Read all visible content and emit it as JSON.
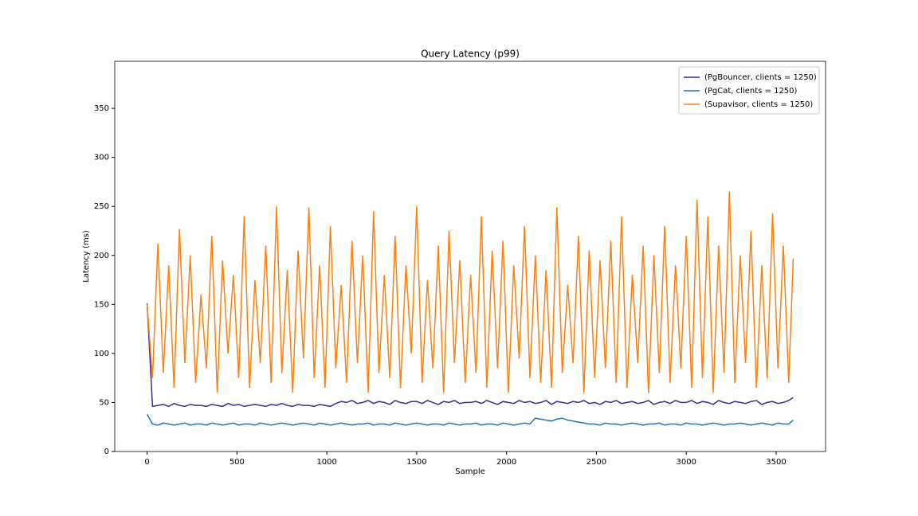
{
  "chart_data": {
    "type": "line",
    "title": "Query Latency (p99)",
    "x_label": "Sample",
    "y_label": "Latency (ms)",
    "x": [
      0,
      30,
      60,
      90,
      120,
      150,
      180,
      210,
      240,
      270,
      300,
      330,
      360,
      390,
      420,
      450,
      480,
      510,
      540,
      570,
      600,
      630,
      660,
      690,
      720,
      750,
      780,
      810,
      840,
      870,
      900,
      930,
      960,
      990,
      1020,
      1050,
      1080,
      1110,
      1140,
      1170,
      1200,
      1230,
      1260,
      1290,
      1320,
      1350,
      1380,
      1410,
      1440,
      1470,
      1500,
      1530,
      1560,
      1590,
      1620,
      1650,
      1680,
      1710,
      1740,
      1770,
      1800,
      1830,
      1860,
      1890,
      1920,
      1950,
      1980,
      2010,
      2040,
      2070,
      2100,
      2130,
      2160,
      2190,
      2220,
      2250,
      2280,
      2310,
      2340,
      2370,
      2400,
      2430,
      2460,
      2490,
      2520,
      2550,
      2580,
      2610,
      2640,
      2670,
      2700,
      2730,
      2760,
      2790,
      2820,
      2850,
      2880,
      2910,
      2940,
      2970,
      3000,
      3030,
      3060,
      3090,
      3120,
      3150,
      3180,
      3210,
      3240,
      3270,
      3300,
      3330,
      3360,
      3390,
      3420,
      3450,
      3480,
      3510,
      3540,
      3570,
      3595
    ],
    "series": [
      {
        "name": "(PgBouncer, clients = 1250)",
        "color": "#3b2c96",
        "values": [
          151,
          46,
          47,
          48,
          46,
          49,
          47,
          46,
          48,
          47,
          47,
          46,
          48,
          47,
          46,
          49,
          47,
          48,
          46,
          47,
          48,
          47,
          46,
          48,
          47,
          49,
          47,
          46,
          48,
          47,
          47,
          46,
          48,
          47,
          46,
          49,
          51,
          50,
          52,
          49,
          50,
          52,
          49,
          51,
          50,
          48,
          52,
          50,
          49,
          51,
          51,
          49,
          52,
          50,
          48,
          51,
          50,
          52,
          49,
          50,
          50,
          51,
          49,
          52,
          50,
          48,
          51,
          50,
          49,
          52,
          50,
          51,
          49,
          50,
          52,
          48,
          51,
          50,
          49,
          51,
          50,
          52,
          49,
          50,
          48,
          51,
          50,
          52,
          49,
          50,
          51,
          49,
          50,
          52,
          48,
          50,
          51,
          49,
          52,
          50,
          50,
          52,
          49,
          51,
          50,
          48,
          52,
          50,
          49,
          51,
          50,
          49,
          51,
          52,
          48,
          50,
          51,
          49,
          50,
          52,
          55
        ]
      },
      {
        "name": "(PgCat, clients = 1250)",
        "color": "#1f77b4",
        "values": [
          38,
          28,
          27,
          29,
          28,
          27,
          28,
          29,
          27,
          28,
          28,
          27,
          29,
          28,
          27,
          28,
          29,
          27,
          28,
          28,
          27,
          29,
          28,
          27,
          28,
          29,
          28,
          27,
          28,
          29,
          28,
          27,
          29,
          28,
          27,
          28,
          29,
          28,
          27,
          28,
          28,
          29,
          27,
          28,
          28,
          27,
          29,
          28,
          27,
          28,
          29,
          28,
          27,
          28,
          28,
          27,
          29,
          28,
          27,
          28,
          28,
          29,
          27,
          28,
          28,
          27,
          29,
          28,
          27,
          28,
          29,
          28,
          34,
          33,
          32,
          31,
          33,
          34,
          32,
          31,
          30,
          29,
          28,
          28,
          27,
          29,
          28,
          28,
          27,
          28,
          29,
          28,
          27,
          28,
          28,
          29,
          27,
          28,
          28,
          27,
          29,
          28,
          28,
          27,
          28,
          29,
          28,
          27,
          28,
          28,
          29,
          28,
          27,
          28,
          29,
          28,
          27,
          29,
          28,
          28,
          32
        ]
      },
      {
        "name": "(Supavisor, clients = 1250)",
        "color": "#ff7f0e",
        "values": [
          150,
          75,
          212,
          80,
          190,
          65,
          227,
          90,
          200,
          70,
          160,
          85,
          220,
          60,
          195,
          100,
          180,
          75,
          240,
          65,
          175,
          90,
          210,
          70,
          250,
          80,
          185,
          60,
          205,
          95,
          249,
          75,
          190,
          65,
          230,
          85,
          170,
          70,
          215,
          90,
          200,
          60,
          245,
          80,
          180,
          75,
          220,
          65,
          190,
          100,
          250,
          70,
          175,
          85,
          210,
          60,
          225,
          90,
          195,
          70,
          180,
          80,
          240,
          65,
          205,
          85,
          215,
          60,
          190,
          95,
          230,
          75,
          200,
          70,
          185,
          65,
          249,
          80,
          170,
          90,
          220,
          60,
          205,
          75,
          195,
          85,
          215,
          70,
          240,
          65,
          180,
          90,
          210,
          60,
          200,
          80,
          230,
          70,
          190,
          85,
          220,
          65,
          257,
          75,
          240,
          60,
          210,
          80,
          265,
          70,
          200,
          90,
          225,
          65,
          190,
          75,
          243,
          85,
          210,
          70,
          197
        ]
      }
    ],
    "xlim": [
      -180,
      3775
    ],
    "ylim": [
      0,
      398
    ],
    "xticks": [
      0,
      500,
      1000,
      1500,
      2000,
      2500,
      3000,
      3500
    ],
    "yticks": [
      0,
      50,
      100,
      150,
      200,
      250,
      300,
      350
    ],
    "legend": "upper right"
  }
}
